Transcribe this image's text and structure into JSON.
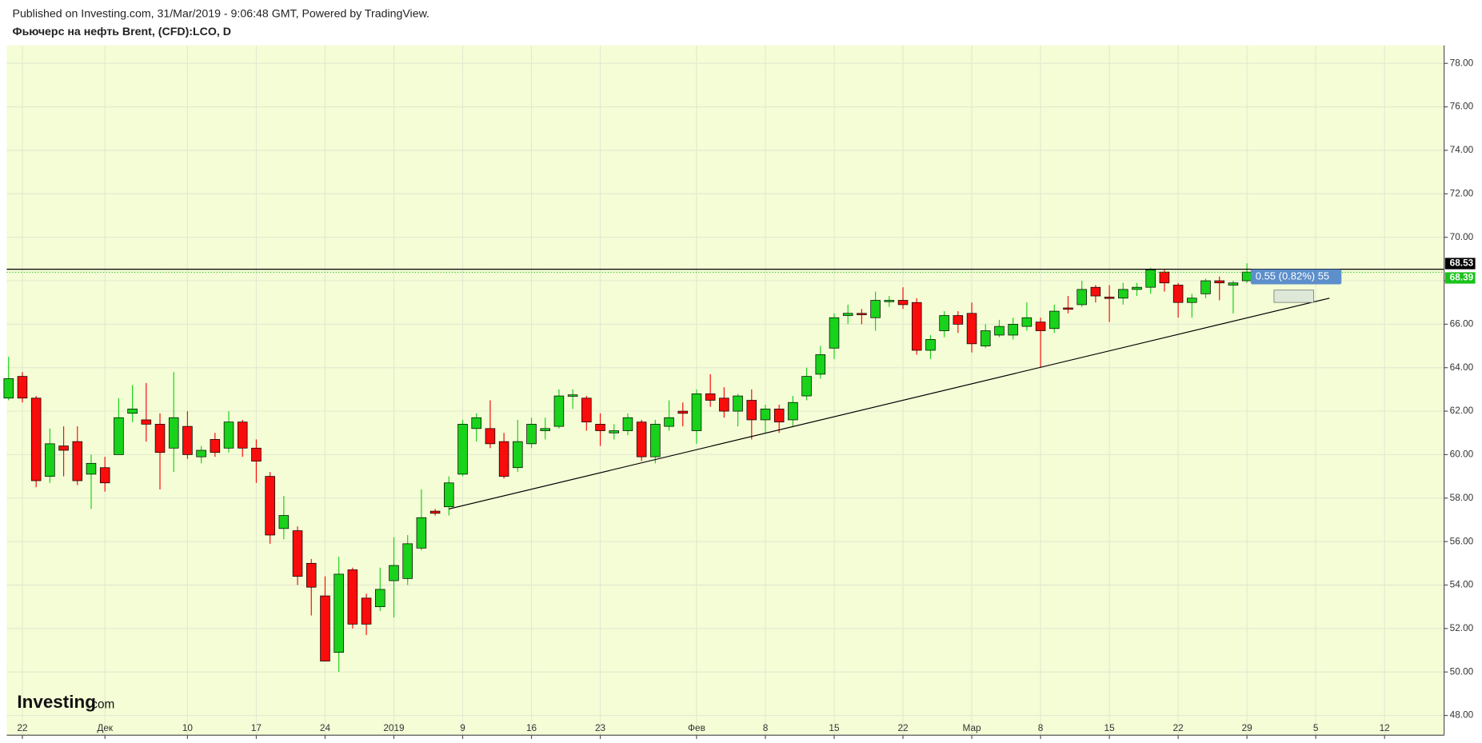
{
  "header": {
    "published": "Published on Investing.com, 31/Mar/2019 - 9:06:48 GMT, Powered by TradingView.",
    "instrument": "Фьючерс на нефть Brent, (CFD):LCO, D"
  },
  "logo": {
    "brand": "Investing",
    "suffix": ".com"
  },
  "chart_data": {
    "type": "candlestick",
    "categories": [
      null,
      "22",
      null,
      null,
      null,
      null,
      null,
      "Дек",
      null,
      null,
      null,
      null,
      null,
      "10",
      null,
      null,
      null,
      null,
      "17",
      null,
      null,
      null,
      null,
      "24",
      null,
      null,
      null,
      null,
      "2019",
      null,
      null,
      null,
      null,
      "9",
      null,
      null,
      null,
      null,
      "16",
      null,
      null,
      null,
      null,
      "23",
      null,
      null,
      null,
      null,
      null,
      null,
      "Фев",
      null,
      null,
      null,
      null,
      "8",
      null,
      null,
      null,
      null,
      "15",
      null,
      null,
      null,
      null,
      "22",
      null,
      null,
      null,
      null,
      "Мар",
      null,
      null,
      null,
      null,
      "8",
      null,
      null,
      null,
      null,
      "15",
      null,
      null,
      null,
      null,
      "22",
      null,
      null,
      null,
      null,
      "29",
      null,
      null,
      null,
      null,
      "5",
      null,
      null,
      null,
      null,
      "12"
    ],
    "open": [
      62.6,
      63.6,
      62.6,
      59.0,
      60.4,
      60.6,
      59.1,
      59.4,
      60.0,
      61.9,
      61.6,
      61.4,
      60.3,
      61.3,
      59.9,
      60.7,
      60.3,
      61.5,
      60.3,
      59.0,
      56.6,
      56.5,
      55.0,
      53.5,
      50.9,
      54.7,
      53.4,
      53.0,
      54.2,
      54.3,
      55.7,
      57.4,
      57.6,
      59.1,
      61.2,
      61.2,
      60.6,
      59.4,
      60.5,
      61.1,
      61.3,
      62.7,
      62.6,
      61.4,
      61.0,
      61.1,
      61.5,
      59.9,
      61.3,
      62.0,
      61.1,
      62.8,
      62.6,
      62.0,
      62.5,
      61.6,
      62.1,
      61.6,
      62.7,
      63.7,
      64.9,
      66.4,
      66.5,
      66.3,
      67.05,
      67.1,
      67.0,
      64.8,
      65.7,
      66.4,
      66.5,
      65.0,
      65.5,
      65.5,
      65.9,
      66.1,
      65.8,
      66.75,
      66.9,
      67.7,
      67.25,
      67.2,
      67.6,
      67.7,
      68.4,
      67.8,
      67.0,
      67.4,
      68.0,
      67.8,
      68.0,
      null,
      null,
      null,
      null,
      null,
      null,
      null,
      null,
      null,
      null
    ],
    "high": [
      64.5,
      63.8,
      62.7,
      61.2,
      61.3,
      61.3,
      60.0,
      59.9,
      62.6,
      63.2,
      63.3,
      61.9,
      63.8,
      62.0,
      60.4,
      61.0,
      62.0,
      61.6,
      60.7,
      59.2,
      58.1,
      56.7,
      55.2,
      54.4,
      55.3,
      54.8,
      53.6,
      54.8,
      56.2,
      56.3,
      58.4,
      57.5,
      59.0,
      61.6,
      61.9,
      62.5,
      61.0,
      61.6,
      61.7,
      61.7,
      63.0,
      63.0,
      62.7,
      61.9,
      61.4,
      61.9,
      61.6,
      61.6,
      62.5,
      62.4,
      63.0,
      63.7,
      63.1,
      62.8,
      63.0,
      62.3,
      62.3,
      62.7,
      64.0,
      65.0,
      66.5,
      66.9,
      66.7,
      67.5,
      67.3,
      67.7,
      67.2,
      65.5,
      66.6,
      66.6,
      67.0,
      66.0,
      66.2,
      66.3,
      67.0,
      66.3,
      66.9,
      67.3,
      68.0,
      67.8,
      67.8,
      67.9,
      67.9,
      68.6,
      68.5,
      67.9,
      67.4,
      68.1,
      68.2,
      68.0,
      68.8,
      null,
      null,
      null,
      null,
      null,
      null,
      null,
      null,
      null,
      null
    ],
    "low": [
      62.5,
      62.4,
      58.5,
      58.7,
      59.0,
      58.6,
      57.5,
      58.3,
      60.0,
      61.5,
      60.6,
      58.4,
      59.2,
      59.8,
      59.6,
      59.9,
      60.1,
      59.9,
      58.7,
      55.9,
      56.1,
      54.0,
      52.6,
      50.5,
      50.0,
      52.0,
      51.7,
      52.8,
      52.5,
      54.0,
      55.6,
      57.2,
      57.2,
      59.0,
      60.6,
      60.3,
      58.9,
      59.2,
      60.3,
      60.7,
      61.2,
      62.1,
      61.1,
      60.4,
      60.7,
      60.9,
      59.7,
      59.6,
      61.1,
      61.3,
      60.5,
      62.2,
      61.7,
      61.3,
      60.7,
      61.0,
      61.0,
      61.3,
      62.5,
      63.5,
      64.4,
      66.0,
      66.0,
      65.7,
      66.8,
      66.7,
      64.6,
      64.4,
      65.4,
      65.6,
      64.7,
      64.9,
      65.4,
      65.3,
      65.7,
      64.0,
      65.6,
      66.5,
      66.8,
      67.0,
      66.1,
      66.9,
      67.3,
      67.4,
      67.5,
      66.3,
      66.3,
      67.2,
      67.1,
      66.5,
      67.9,
      null,
      null,
      null,
      null,
      null,
      null,
      null,
      null,
      null,
      null
    ],
    "close": [
      63.5,
      62.6,
      58.8,
      60.5,
      60.2,
      58.8,
      59.6,
      58.7,
      61.7,
      62.1,
      61.4,
      60.1,
      61.7,
      60.0,
      60.2,
      60.1,
      61.5,
      60.3,
      59.7,
      56.3,
      57.2,
      54.4,
      53.9,
      50.5,
      54.5,
      52.2,
      52.2,
      53.8,
      54.9,
      55.9,
      57.1,
      57.3,
      58.7,
      61.4,
      61.7,
      60.5,
      59.0,
      60.6,
      61.4,
      61.2,
      62.7,
      62.75,
      61.5,
      61.1,
      61.1,
      61.7,
      59.9,
      61.4,
      61.7,
      61.9,
      62.8,
      62.5,
      62.0,
      62.7,
      61.6,
      62.1,
      61.5,
      62.4,
      63.6,
      64.6,
      66.3,
      66.5,
      66.45,
      67.1,
      67.1,
      66.9,
      64.8,
      65.3,
      66.4,
      66.0,
      65.1,
      65.7,
      65.9,
      66.0,
      66.3,
      65.7,
      66.6,
      66.7,
      67.6,
      67.3,
      67.2,
      67.6,
      67.7,
      68.5,
      67.9,
      67.0,
      67.2,
      68.0,
      67.9,
      67.9,
      68.4,
      null,
      null,
      null,
      null,
      null,
      null,
      null,
      null,
      null,
      null
    ],
    "up_color": "#19d21b",
    "down_color": "#f80c0c",
    "ylim": [
      47.09,
      78.83
    ],
    "yticks": [
      {
        "value": 48,
        "label": "48.00"
      },
      {
        "value": 50,
        "label": "50.00"
      },
      {
        "value": 52,
        "label": "52.00"
      },
      {
        "value": 54,
        "label": "54.00"
      },
      {
        "value": 56,
        "label": "56.00"
      },
      {
        "value": 58,
        "label": "58.00"
      },
      {
        "value": 60,
        "label": "60.00"
      },
      {
        "value": 62,
        "label": "62.00"
      },
      {
        "value": 64,
        "label": "64.00"
      },
      {
        "value": 66,
        "label": "66.00"
      },
      {
        "value": 68,
        "label": "68.00"
      },
      {
        "value": 70,
        "label": "70.00"
      },
      {
        "value": 72,
        "label": "72.00"
      },
      {
        "value": 74,
        "label": "74.00"
      },
      {
        "value": 76,
        "label": "76.00"
      },
      {
        "value": 78,
        "label": "78.00"
      }
    ],
    "grid": true,
    "price_lines": [
      {
        "value": 68.53,
        "color": "#000000",
        "style": "solid"
      },
      {
        "value": 68.39,
        "color": "#19c21b",
        "style": "dotted"
      }
    ],
    "trendline": {
      "x": [
        32,
        96
      ],
      "y": [
        57.5,
        67.2
      ]
    },
    "annotation": "0.55 (0.82%) 55"
  }
}
